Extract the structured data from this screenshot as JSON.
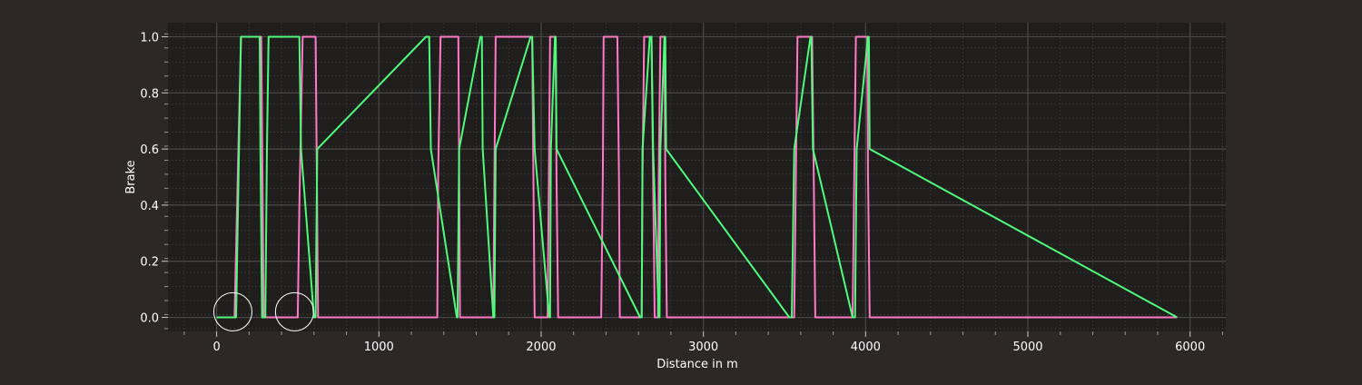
{
  "chart_data": {
    "type": "line",
    "title": "",
    "xlabel": "Distance in m",
    "ylabel": "Brake",
    "xlim": [
      -300,
      6220
    ],
    "ylim": [
      -0.05,
      1.05
    ],
    "x_ticks": [
      0,
      1000,
      2000,
      3000,
      4000,
      5000,
      6000
    ],
    "x_tick_labels": [
      "0",
      "1000",
      "2000",
      "3000",
      "4000",
      "5000",
      "6000"
    ],
    "y_ticks": [
      0.0,
      0.2,
      0.4,
      0.6,
      0.8,
      1.0
    ],
    "y_tick_labels": [
      "0.0",
      "0.2",
      "0.4",
      "0.6",
      "0.8",
      "1.0"
    ],
    "grid": true,
    "legend": "none",
    "background_color": "#2b2827",
    "plot_background_color": "#1f1e1d",
    "series": [
      {
        "color": "#ff79c6",
        "x": [
          0,
          110,
          150,
          270,
          275,
          290,
          500,
          510,
          530,
          595,
          610,
          625,
          1360,
          1365,
          1380,
          1480,
          1490,
          1500,
          1705,
          1712,
          1720,
          1930,
          1945,
          1960,
          2040,
          2048,
          2055,
          2090,
          2095,
          2105,
          2370,
          2380,
          2385,
          2470,
          2480,
          2485,
          2620,
          2625,
          2635,
          2680,
          2690,
          2700,
          2720,
          2725,
          2735,
          2760,
          2765,
          2775,
          3560,
          3570,
          3580,
          3670,
          3680,
          3690,
          3920,
          3930,
          3940,
          4010,
          4015,
          4025,
          5920
        ],
        "y": [
          0,
          0,
          1,
          1,
          1,
          0,
          0,
          0.4,
          1,
          1,
          1,
          0,
          0,
          0.5,
          1,
          1,
          1,
          0,
          0,
          0.5,
          1,
          1,
          1,
          0,
          0,
          0.5,
          1,
          1,
          0.5,
          0,
          0,
          0.5,
          1,
          1,
          0.5,
          0,
          0,
          0.5,
          1,
          1,
          0.5,
          0,
          0,
          0.5,
          1,
          1,
          0.5,
          0,
          0,
          0.5,
          1,
          1,
          0.5,
          0,
          0,
          0.5,
          1,
          1,
          0.5,
          0,
          0
        ]
      },
      {
        "color": "#50fa7b",
        "x": [
          0,
          120,
          150,
          265,
          270,
          280,
          300,
          310,
          320,
          500,
          510,
          520,
          600,
          610,
          620,
          1290,
          1310,
          1320,
          1480,
          1485,
          1495,
          1625,
          1635,
          1640,
          1705,
          1712,
          1720,
          1935,
          1945,
          1960,
          2050,
          2055,
          2060,
          2085,
          2090,
          2095,
          2610,
          2620,
          2625,
          2670,
          2680,
          2690,
          2725,
          2730,
          2735,
          2760,
          2765,
          2770,
          3530,
          3545,
          3560,
          3660,
          3665,
          3675,
          3920,
          3935,
          3945,
          4015,
          4020,
          4025,
          5920
        ],
        "y": [
          0,
          0,
          1,
          1,
          0.6,
          0,
          0,
          0.6,
          1,
          1,
          1,
          0.6,
          0,
          0,
          0.6,
          1,
          1,
          0.6,
          0,
          0,
          0.6,
          1,
          1,
          0.6,
          0,
          0,
          0.6,
          1,
          1,
          0.6,
          0,
          0,
          0.6,
          1,
          1,
          0.6,
          0,
          0,
          0.6,
          1,
          1,
          0.6,
          0,
          0,
          0.6,
          1,
          1,
          0.6,
          0,
          0,
          0.6,
          1,
          1,
          0.6,
          0,
          0,
          0.6,
          1,
          1,
          0.6,
          0
        ]
      }
    ],
    "annotations": [
      {
        "shape": "circle",
        "x": 100,
        "y": 0.02
      },
      {
        "shape": "circle",
        "x": 480,
        "y": 0.02
      }
    ]
  }
}
